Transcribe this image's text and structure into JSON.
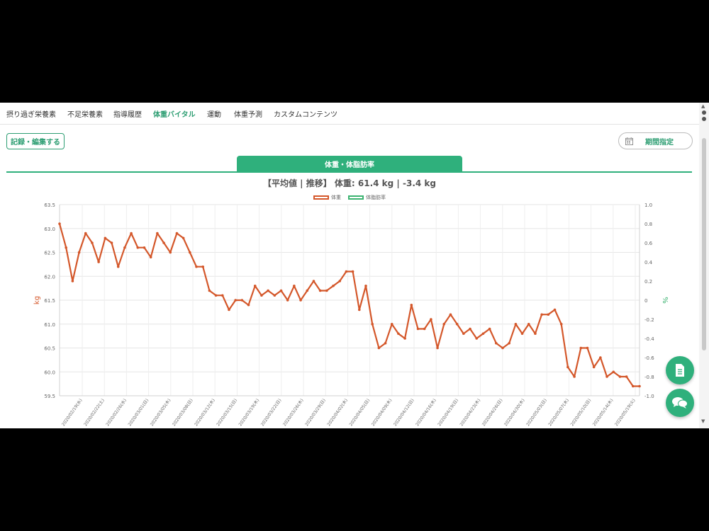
{
  "nav": {
    "tabs": [
      {
        "label": "摂り過ぎ栄養素"
      },
      {
        "label": "不足栄養素"
      },
      {
        "label": "指導履歴"
      },
      {
        "label": "体重バイタル",
        "active": true
      },
      {
        "label": "運動"
      },
      {
        "label": "体重予測"
      },
      {
        "label": "カスタムコンテンツ"
      }
    ]
  },
  "toolbar": {
    "edit_label": "記録・編集する",
    "period_label": "期間指定",
    "period_icon": "calendar-icon"
  },
  "chart_tab": {
    "label": "体重・体脂肪率"
  },
  "colors": {
    "accent": "#2fb07c",
    "weight_line": "#d4572a",
    "fat_line": "#3cb371"
  },
  "fabs": [
    {
      "icon": "document-icon"
    },
    {
      "icon": "chat-icon"
    }
  ],
  "chart_data": {
    "type": "line",
    "title": "【平均値 | 推移】 体重: 61.4 kg | -3.4 kg",
    "ylabel": "kg",
    "y2label": "%",
    "ylim": [
      59.5,
      63.5
    ],
    "y2lim": [
      -1.0,
      1.0
    ],
    "yticks": [
      "63.5",
      "63.0",
      "62.5",
      "62.0",
      "61.5",
      "61.0",
      "60.5",
      "60.0",
      "59.5"
    ],
    "y2ticks": [
      "1.0",
      "0.8",
      "0.6",
      "0.4",
      "0.2",
      "0",
      "-0.2",
      "-0.4",
      "-0.6",
      "-0.8",
      "-1.0"
    ],
    "legend_position": "top-center",
    "grid": true,
    "xticklabels": [
      "2020/02/19(水)",
      "2020/02/22(土)",
      "2020/02/26(水)",
      "2020/03/01(日)",
      "2020/03/05(木)",
      "2020/03/08(日)",
      "2020/03/12(木)",
      "2020/03/15(日)",
      "2020/03/19(木)",
      "2020/03/22(日)",
      "2020/03/26(木)",
      "2020/03/29(日)",
      "2020/04/02(木)",
      "2020/04/05(日)",
      "2020/04/09(木)",
      "2020/04/12(日)",
      "2020/04/16(木)",
      "2020/04/19(日)",
      "2020/04/23(木)",
      "2020/04/26(日)",
      "2020/04/30(木)",
      "2020/05/03(日)",
      "2020/05/07(木)",
      "2020/05/10(日)",
      "2020/05/14(木)",
      "2020/05/19(火)"
    ],
    "series": [
      {
        "name": "体重",
        "values": [
          63.1,
          62.6,
          61.9,
          62.5,
          62.9,
          62.7,
          62.3,
          62.8,
          62.7,
          62.2,
          62.6,
          62.9,
          62.6,
          62.6,
          62.4,
          62.9,
          62.7,
          62.5,
          62.9,
          62.8,
          62.5,
          62.2,
          62.2,
          61.7,
          61.6,
          61.6,
          61.3,
          61.5,
          61.5,
          61.4,
          61.8,
          61.6,
          61.7,
          61.6,
          61.7,
          61.5,
          61.8,
          61.5,
          61.7,
          61.9,
          61.7,
          61.7,
          61.8,
          61.9,
          62.1,
          62.1,
          61.3,
          61.8,
          61.0,
          60.5,
          60.6,
          61.0,
          60.8,
          60.7,
          61.4,
          60.9,
          60.9,
          61.1,
          60.5,
          61.0,
          61.2,
          61.0,
          60.8,
          60.9,
          60.7,
          60.8,
          60.9,
          60.6,
          60.5,
          60.6,
          61.0,
          60.8,
          61.0,
          60.8,
          61.2,
          61.2,
          61.3,
          61.0,
          60.1,
          59.9,
          60.5,
          60.5,
          60.1,
          60.3,
          59.9,
          60.0,
          59.9,
          59.9,
          59.7,
          59.7
        ]
      },
      {
        "name": "体脂肪率",
        "values": []
      }
    ]
  }
}
